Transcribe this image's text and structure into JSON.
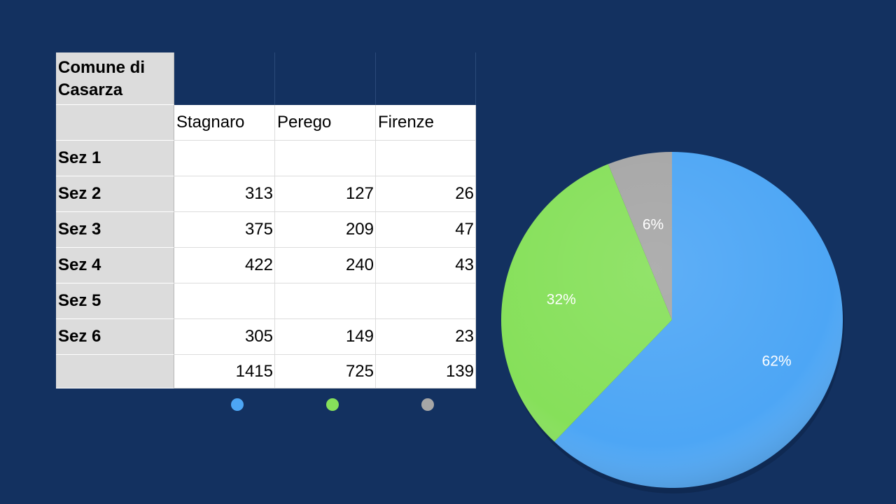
{
  "table": {
    "title": "Comune di Casarza",
    "columns": [
      "Stagnaro",
      "Perego",
      "Firenze"
    ],
    "rows": [
      {
        "label": "Sez 1",
        "values": [
          "",
          "",
          ""
        ]
      },
      {
        "label": "Sez 2",
        "values": [
          "313",
          "127",
          "26"
        ]
      },
      {
        "label": "Sez 3",
        "values": [
          "375",
          "209",
          "47"
        ]
      },
      {
        "label": "Sez 4",
        "values": [
          "422",
          "240",
          "43"
        ]
      },
      {
        "label": "Sez 5",
        "values": [
          "",
          "",
          ""
        ]
      },
      {
        "label": "Sez 6",
        "values": [
          "305",
          "149",
          "23"
        ]
      },
      {
        "label": "",
        "values": [
          "1415",
          "725",
          "139"
        ]
      }
    ]
  },
  "chart_data": {
    "type": "pie",
    "categories": [
      "Stagnaro",
      "Perego",
      "Firenze"
    ],
    "values": [
      1415,
      725,
      139
    ],
    "data_labels": [
      "62%",
      "32%",
      "6%"
    ],
    "colors": [
      "#4da6f5",
      "#86e05a",
      "#a6a6a6"
    ],
    "title": "",
    "legend_placement": "bottom"
  }
}
